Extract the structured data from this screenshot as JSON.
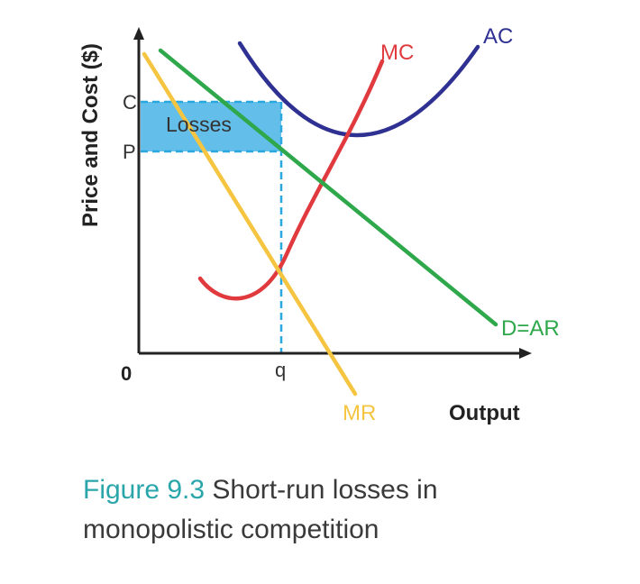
{
  "diagram": {
    "axes": {
      "y_label": "Price and Cost ($)",
      "x_label": "Output",
      "origin_label": "0"
    },
    "price_labels": {
      "cost": "C",
      "price": "P"
    },
    "quantity_label": "q",
    "region_label": "Losses",
    "curves": {
      "mc": {
        "label": "MC",
        "color": "#e03a3e"
      },
      "ac": {
        "label": "AC",
        "color": "#2e3192"
      },
      "demand": {
        "label": "D=AR",
        "color": "#2ea84a"
      },
      "mr": {
        "label": "MR",
        "color": "#f5c542"
      }
    },
    "colors": {
      "losses_fill": "#5bbbe9",
      "losses_border": "#29a8e0",
      "axis": "#222222"
    }
  },
  "caption": {
    "figure_number": "Figure 9.3",
    "text": "Short-run losses in monopolistic competition"
  }
}
